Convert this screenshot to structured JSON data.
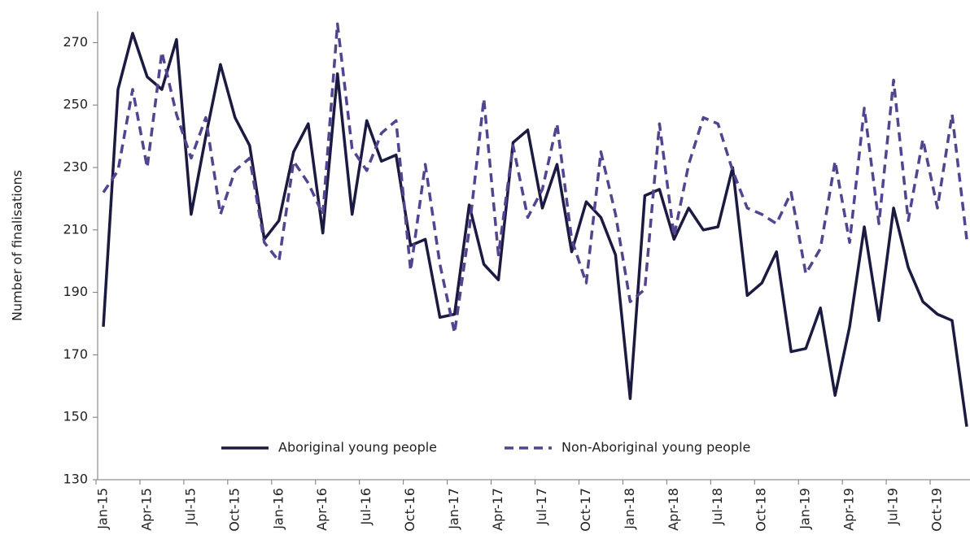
{
  "chart_data": {
    "type": "line",
    "y_label": "Number of finalisations",
    "categories": [
      "Jan-15",
      null,
      null,
      "Apr-15",
      null,
      null,
      "Jul-15",
      null,
      null,
      "Oct-15",
      null,
      null,
      "Jan-16",
      null,
      null,
      "Apr-16",
      null,
      null,
      "Jul-16",
      null,
      null,
      "Oct-16",
      null,
      null,
      "Jan-17",
      null,
      null,
      "Apr-17",
      null,
      null,
      "Jul-17",
      null,
      null,
      "Oct-17",
      null,
      null,
      "Jan-18",
      null,
      null,
      "Apr-18",
      null,
      null,
      "Jul-18",
      null,
      null,
      "Oct-18",
      null,
      null,
      "Jan-19",
      null,
      null,
      "Apr-19",
      null,
      null,
      "Jul-19",
      null,
      null,
      "Oct-19",
      null,
      null
    ],
    "series": [
      {
        "name": "Aboriginal young people",
        "color": "#1b1a40",
        "dash": false,
        "values": [
          179,
          255,
          273,
          259,
          255,
          271,
          215,
          240,
          263,
          246,
          237,
          207,
          213,
          235,
          244,
          209,
          260,
          215,
          245,
          232,
          234,
          205,
          207,
          182,
          183,
          218,
          199,
          194,
          238,
          242,
          217,
          231,
          203,
          219,
          214,
          202,
          156,
          221,
          223,
          207,
          217,
          210,
          211,
          230,
          189,
          193,
          203,
          171,
          172,
          185,
          157,
          179,
          211,
          181,
          217,
          198,
          187,
          183,
          181,
          147
        ]
      },
      {
        "name": "Non-Aboriginal young people",
        "color": "#52448f",
        "dash": true,
        "values": [
          222,
          229,
          255,
          230,
          267,
          247,
          233,
          246,
          215,
          229,
          233,
          206,
          200,
          232,
          225,
          215,
          276,
          236,
          229,
          241,
          245,
          197,
          231,
          199,
          177,
          210,
          252,
          202,
          237,
          214,
          223,
          244,
          207,
          193,
          235,
          215,
          187,
          191,
          244,
          208,
          231,
          246,
          244,
          229,
          217,
          215,
          212,
          222,
          196,
          204,
          232,
          206,
          249,
          212,
          258,
          213,
          239,
          217,
          247,
          207
        ]
      }
    ],
    "ylim": [
      130,
      280
    ],
    "yticks": [
      130,
      150,
      170,
      190,
      210,
      230,
      250,
      270
    ],
    "grid": false,
    "legend": "bottom"
  }
}
